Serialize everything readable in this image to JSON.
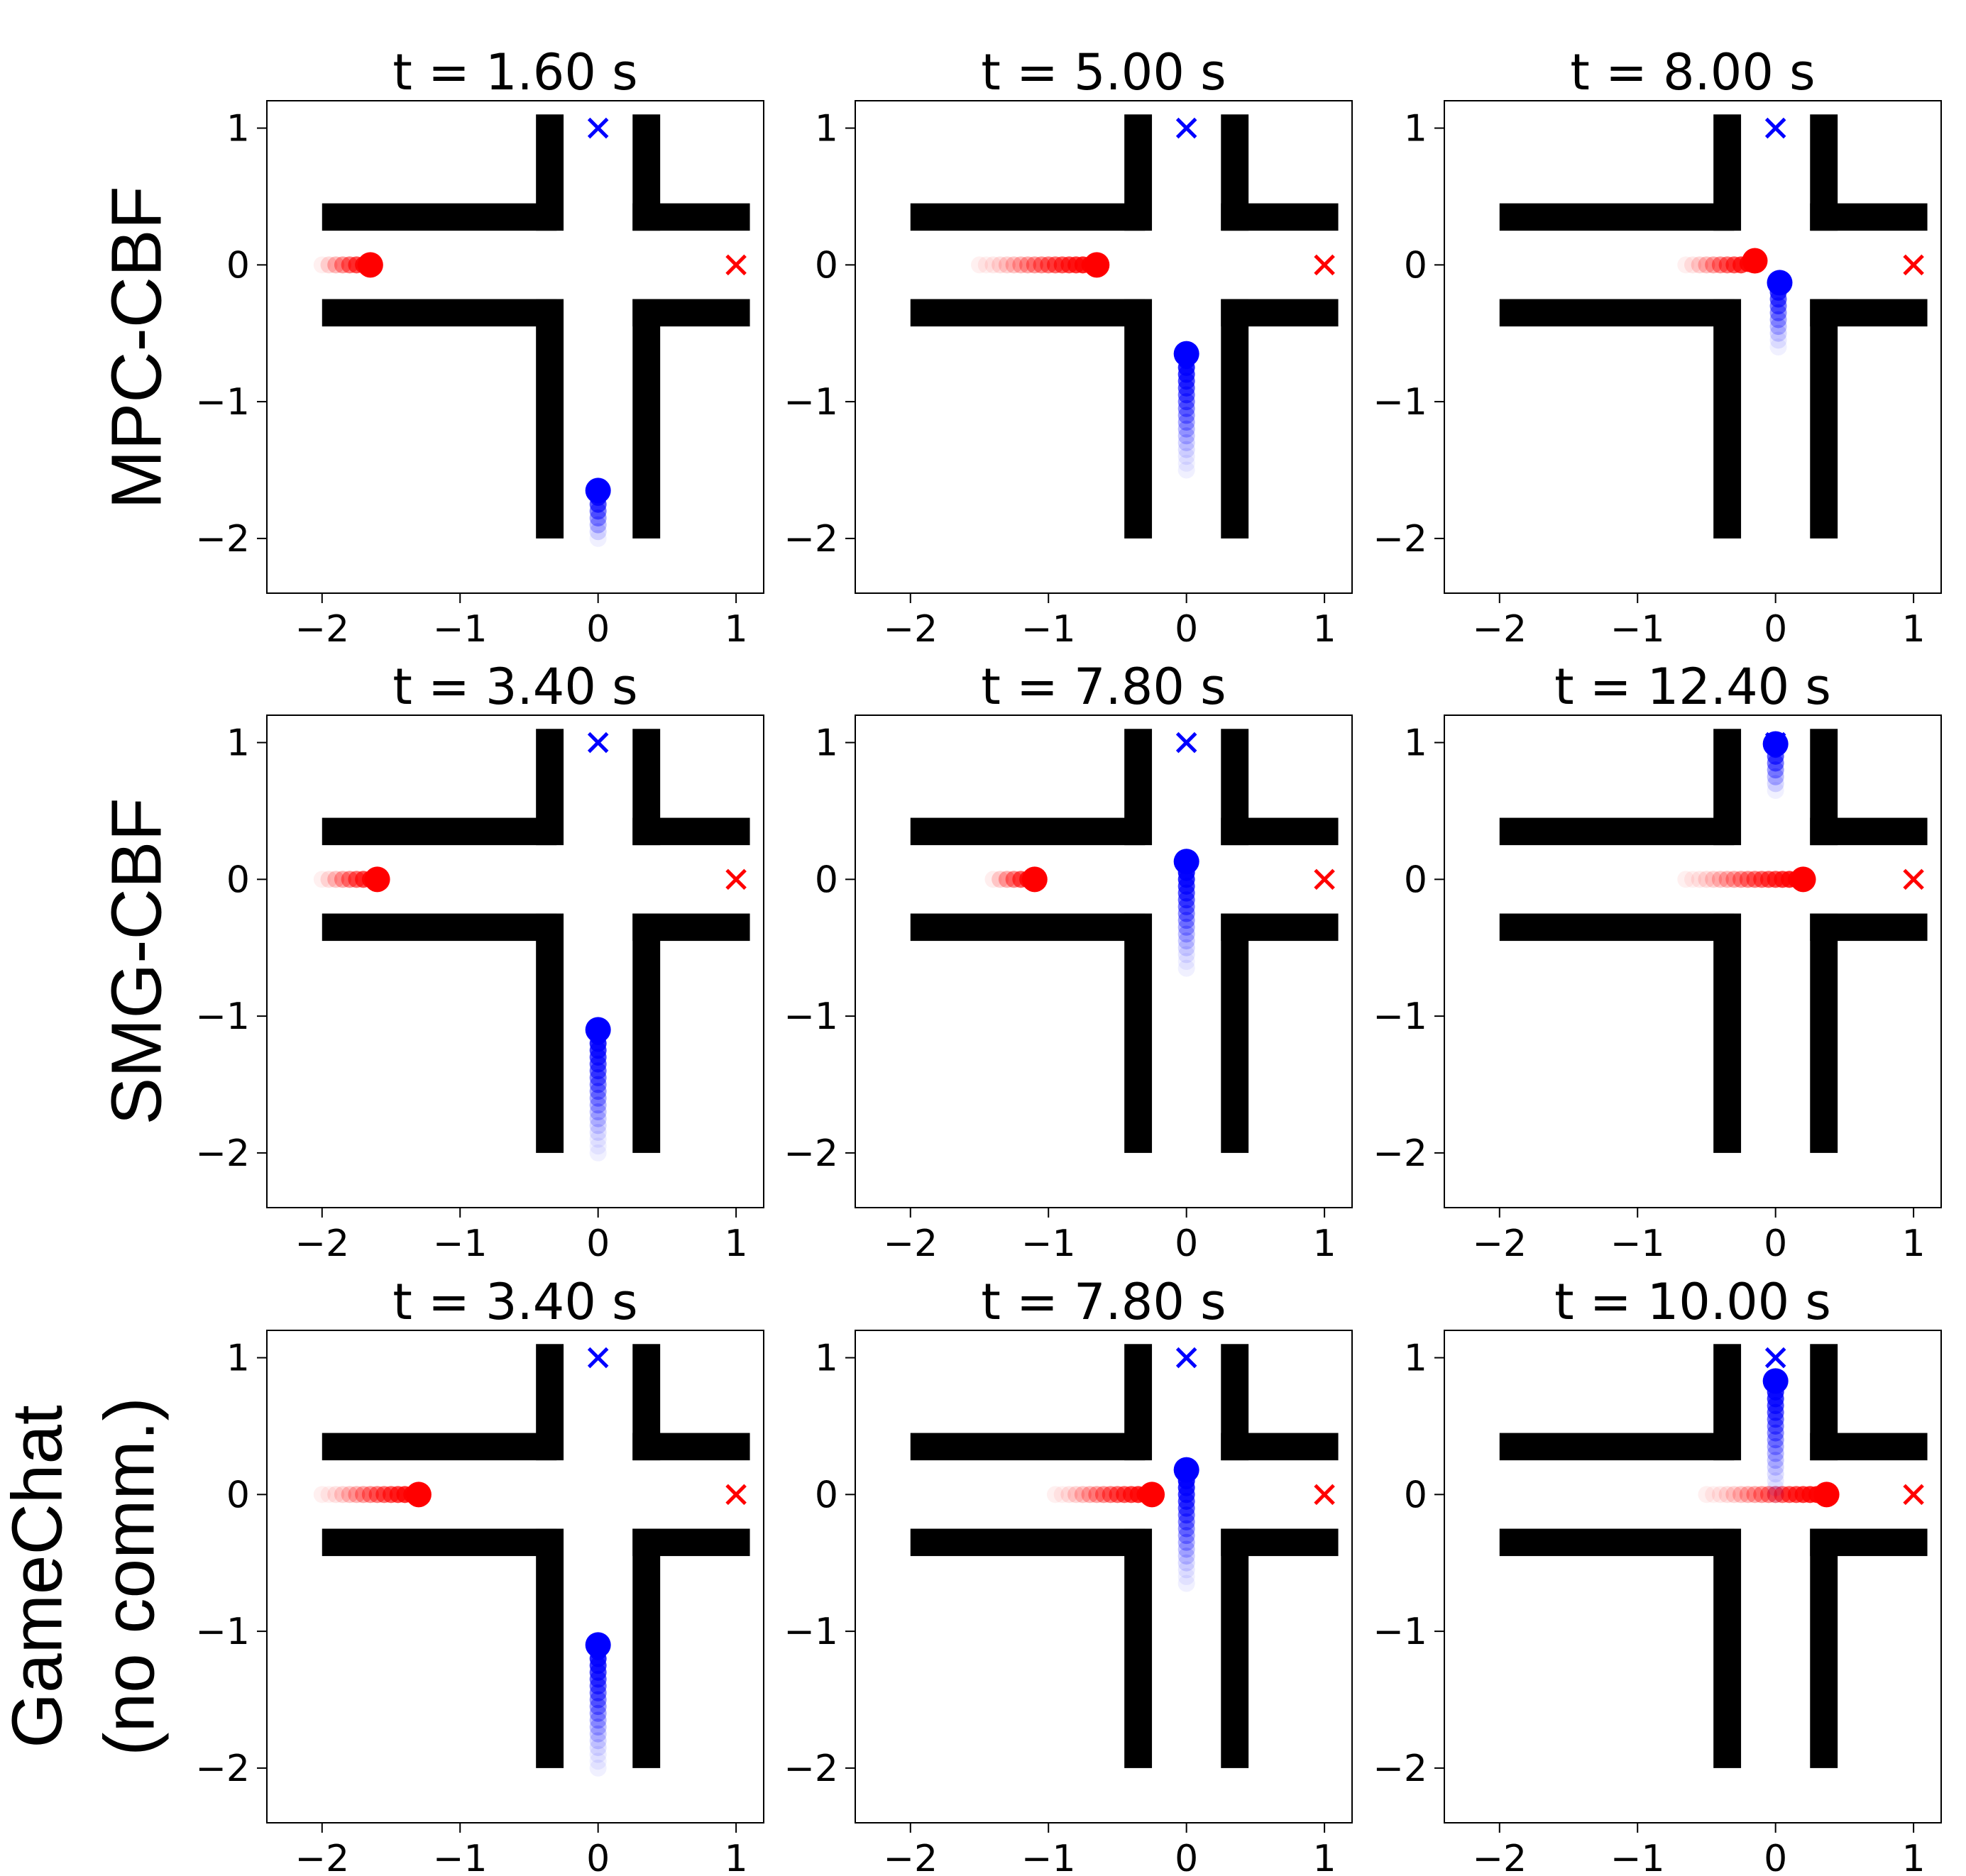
{
  "figure": {
    "row_labels": [
      [
        "MPC-CBF"
      ],
      [
        "SMG-CBF"
      ],
      [
        "GameChat",
        "(no comm.)"
      ]
    ]
  },
  "colors": {
    "red_agent": "#ff0000",
    "blue_agent": "#0000ff",
    "walls": "#000000",
    "axes": "#000000",
    "background": "#ffffff"
  },
  "chart_data": [
    {
      "type": "scatter",
      "title": "t = 1.60 s",
      "xlim": [
        -2.4,
        1.2
      ],
      "ylim": [
        -2.4,
        1.2
      ],
      "xticks": [
        -2,
        -1,
        0,
        1
      ],
      "yticks": [
        1,
        0,
        -1,
        -2
      ],
      "series": [
        {
          "color": "red",
          "x": [
            -2.0,
            -1.95,
            -1.9,
            -1.85,
            -1.8,
            -1.75,
            -1.7,
            -1.65
          ],
          "y": [
            0,
            0,
            0,
            0,
            0,
            0,
            0,
            0
          ]
        },
        {
          "color": "blue",
          "x": [
            0,
            0,
            0,
            0,
            0,
            0,
            0,
            0
          ],
          "y": [
            -2.0,
            -1.95,
            -1.9,
            -1.85,
            -1.8,
            -1.75,
            -1.7,
            -1.65
          ]
        }
      ],
      "goals": [
        {
          "color": "blue",
          "x": 0,
          "y": 1
        },
        {
          "color": "red",
          "x": 1,
          "y": 0
        }
      ]
    },
    {
      "type": "scatter",
      "title": "t = 5.00 s",
      "xlim": [
        -2.4,
        1.2
      ],
      "ylim": [
        -2.4,
        1.2
      ],
      "xticks": [
        -2,
        -1,
        0,
        1
      ],
      "yticks": [
        1,
        0,
        -1,
        -2
      ],
      "series": [
        {
          "color": "red",
          "x": [
            -1.5,
            -1.45,
            -1.4,
            -1.35,
            -1.3,
            -1.25,
            -1.2,
            -1.15,
            -1.1,
            -1.05,
            -1.0,
            -0.95,
            -0.9,
            -0.85,
            -0.8,
            -0.75,
            -0.7,
            -0.65
          ],
          "y": [
            0,
            0,
            0,
            0,
            0,
            0,
            0,
            0,
            0,
            0,
            0,
            0,
            0,
            0,
            0,
            0,
            0,
            0
          ]
        },
        {
          "color": "blue",
          "x": [
            0,
            0,
            0,
            0,
            0,
            0,
            0,
            0,
            0,
            0,
            0,
            0,
            0,
            0,
            0,
            0,
            0,
            0
          ],
          "y": [
            -1.5,
            -1.45,
            -1.4,
            -1.35,
            -1.3,
            -1.25,
            -1.2,
            -1.15,
            -1.1,
            -1.05,
            -1.0,
            -0.95,
            -0.9,
            -0.85,
            -0.8,
            -0.75,
            -0.7,
            -0.65
          ]
        }
      ],
      "goals": [
        {
          "color": "blue",
          "x": 0,
          "y": 1
        },
        {
          "color": "red",
          "x": 1,
          "y": 0
        }
      ]
    },
    {
      "type": "scatter",
      "title": "t = 8.00 s",
      "xlim": [
        -2.4,
        1.2
      ],
      "ylim": [
        -2.4,
        1.2
      ],
      "xticks": [
        -2,
        -1,
        0,
        1
      ],
      "yticks": [
        1,
        0,
        -1,
        -2
      ],
      "series": [
        {
          "color": "red",
          "x": [
            -0.65,
            -0.6,
            -0.55,
            -0.5,
            -0.45,
            -0.4,
            -0.35,
            -0.3,
            -0.25,
            -0.2,
            -0.15
          ],
          "y": [
            0,
            0,
            0,
            0,
            0,
            0,
            0,
            0,
            0,
            0.01,
            0.03
          ]
        },
        {
          "color": "blue",
          "x": [
            0.02,
            0.02,
            0.02,
            0.02,
            0.02,
            0.02,
            0.02,
            0.02,
            0.02,
            0.02,
            0.03
          ],
          "y": [
            -0.6,
            -0.55,
            -0.5,
            -0.45,
            -0.4,
            -0.35,
            -0.3,
            -0.25,
            -0.2,
            -0.16,
            -0.13
          ]
        }
      ],
      "goals": [
        {
          "color": "blue",
          "x": 0,
          "y": 1
        },
        {
          "color": "red",
          "x": 1,
          "y": 0
        }
      ]
    },
    {
      "type": "scatter",
      "title": "t = 3.40 s",
      "xlim": [
        -2.4,
        1.2
      ],
      "ylim": [
        -2.4,
        1.2
      ],
      "xticks": [
        -2,
        -1,
        0,
        1
      ],
      "yticks": [
        1,
        0,
        -1,
        -2
      ],
      "series": [
        {
          "color": "red",
          "x": [
            -2.0,
            -1.95,
            -1.9,
            -1.85,
            -1.8,
            -1.75,
            -1.7,
            -1.65,
            -1.6
          ],
          "y": [
            0,
            0,
            0,
            0,
            0,
            0,
            0,
            0,
            0
          ]
        },
        {
          "color": "blue",
          "x": [
            0,
            0,
            0,
            0,
            0,
            0,
            0,
            0,
            0,
            0,
            0,
            0,
            0,
            0,
            0,
            0,
            0,
            0,
            0
          ],
          "y": [
            -2.0,
            -1.95,
            -1.9,
            -1.85,
            -1.8,
            -1.75,
            -1.7,
            -1.65,
            -1.6,
            -1.55,
            -1.5,
            -1.45,
            -1.4,
            -1.35,
            -1.3,
            -1.25,
            -1.2,
            -1.15,
            -1.1
          ]
        }
      ],
      "goals": [
        {
          "color": "blue",
          "x": 0,
          "y": 1
        },
        {
          "color": "red",
          "x": 1,
          "y": 0
        }
      ]
    },
    {
      "type": "scatter",
      "title": "t = 7.80 s",
      "xlim": [
        -2.4,
        1.2
      ],
      "ylim": [
        -2.4,
        1.2
      ],
      "xticks": [
        -2,
        -1,
        0,
        1
      ],
      "yticks": [
        1,
        0,
        -1,
        -2
      ],
      "series": [
        {
          "color": "red",
          "x": [
            -1.4,
            -1.35,
            -1.3,
            -1.25,
            -1.2,
            -1.15,
            -1.1
          ],
          "y": [
            0,
            0,
            0,
            0,
            0,
            0,
            0
          ]
        },
        {
          "color": "blue",
          "x": [
            0,
            0,
            0,
            0,
            0,
            0,
            0,
            0,
            0,
            0,
            0,
            0,
            0,
            0,
            0,
            0
          ],
          "y": [
            -0.65,
            -0.6,
            -0.55,
            -0.5,
            -0.45,
            -0.4,
            -0.35,
            -0.3,
            -0.25,
            -0.2,
            -0.15,
            -0.1,
            -0.05,
            0.0,
            0.05,
            0.13
          ]
        }
      ],
      "goals": [
        {
          "color": "blue",
          "x": 0,
          "y": 1
        },
        {
          "color": "red",
          "x": 1,
          "y": 0
        }
      ]
    },
    {
      "type": "scatter",
      "title": "t = 12.40 s",
      "xlim": [
        -2.4,
        1.2
      ],
      "ylim": [
        -2.4,
        1.2
      ],
      "xticks": [
        -2,
        -1,
        0,
        1
      ],
      "yticks": [
        1,
        0,
        -1,
        -2
      ],
      "series": [
        {
          "color": "red",
          "x": [
            -0.65,
            -0.6,
            -0.55,
            -0.5,
            -0.45,
            -0.4,
            -0.35,
            -0.3,
            -0.25,
            -0.2,
            -0.15,
            -0.1,
            -0.05,
            0.0,
            0.05,
            0.1,
            0.15,
            0.2
          ],
          "y": [
            0,
            0,
            0,
            0,
            0,
            0,
            0,
            0,
            0,
            0,
            0,
            0,
            0,
            0,
            0,
            0,
            0,
            0
          ]
        },
        {
          "color": "blue",
          "x": [
            0,
            0,
            0,
            0,
            0,
            0,
            0,
            0
          ],
          "y": [
            0.65,
            0.7,
            0.75,
            0.8,
            0.85,
            0.9,
            0.95,
            0.99
          ]
        }
      ],
      "goals": [
        {
          "color": "blue",
          "x": 0,
          "y": 1
        },
        {
          "color": "red",
          "x": 1,
          "y": 0
        }
      ]
    },
    {
      "type": "scatter",
      "title": "t = 3.40 s",
      "xlim": [
        -2.4,
        1.2
      ],
      "ylim": [
        -2.4,
        1.2
      ],
      "xticks": [
        -2,
        -1,
        0,
        1
      ],
      "yticks": [
        1,
        0,
        -1,
        -2
      ],
      "series": [
        {
          "color": "red",
          "x": [
            -2.0,
            -1.95,
            -1.9,
            -1.85,
            -1.8,
            -1.75,
            -1.7,
            -1.65,
            -1.6,
            -1.55,
            -1.5,
            -1.45,
            -1.4,
            -1.35,
            -1.3
          ],
          "y": [
            0,
            0,
            0,
            0,
            0,
            0,
            0,
            0,
            0,
            0,
            0,
            0,
            0,
            0,
            0
          ]
        },
        {
          "color": "blue",
          "x": [
            0,
            0,
            0,
            0,
            0,
            0,
            0,
            0,
            0,
            0,
            0,
            0,
            0,
            0,
            0,
            0,
            0,
            0,
            0
          ],
          "y": [
            -2.0,
            -1.95,
            -1.9,
            -1.85,
            -1.8,
            -1.75,
            -1.7,
            -1.65,
            -1.6,
            -1.55,
            -1.5,
            -1.45,
            -1.4,
            -1.35,
            -1.3,
            -1.25,
            -1.2,
            -1.15,
            -1.1
          ]
        }
      ],
      "goals": [
        {
          "color": "blue",
          "x": 0,
          "y": 1
        },
        {
          "color": "red",
          "x": 1,
          "y": 0
        }
      ]
    },
    {
      "type": "scatter",
      "title": "t = 7.80 s",
      "xlim": [
        -2.4,
        1.2
      ],
      "ylim": [
        -2.4,
        1.2
      ],
      "xticks": [
        -2,
        -1,
        0,
        1
      ],
      "yticks": [
        1,
        0,
        -1,
        -2
      ],
      "series": [
        {
          "color": "red",
          "x": [
            -0.95,
            -0.9,
            -0.85,
            -0.8,
            -0.75,
            -0.7,
            -0.65,
            -0.6,
            -0.55,
            -0.5,
            -0.45,
            -0.4,
            -0.35,
            -0.3,
            -0.25
          ],
          "y": [
            0,
            0,
            0,
            0,
            0,
            0,
            0,
            0,
            0,
            0,
            0,
            0,
            0,
            0,
            0
          ]
        },
        {
          "color": "blue",
          "x": [
            0,
            0,
            0,
            0,
            0,
            0,
            0,
            0,
            0,
            0,
            0,
            0,
            0,
            0,
            0,
            0,
            0
          ],
          "y": [
            -0.65,
            -0.6,
            -0.55,
            -0.5,
            -0.45,
            -0.4,
            -0.35,
            -0.3,
            -0.25,
            -0.2,
            -0.15,
            -0.1,
            -0.05,
            0.0,
            0.05,
            0.1,
            0.18
          ]
        }
      ],
      "goals": [
        {
          "color": "blue",
          "x": 0,
          "y": 1
        },
        {
          "color": "red",
          "x": 1,
          "y": 0
        }
      ]
    },
    {
      "type": "scatter",
      "title": "t = 10.00 s",
      "xlim": [
        -2.4,
        1.2
      ],
      "ylim": [
        -2.4,
        1.2
      ],
      "xticks": [
        -2,
        -1,
        0,
        1
      ],
      "yticks": [
        1,
        0,
        -1,
        -2
      ],
      "series": [
        {
          "color": "red",
          "x": [
            -0.5,
            -0.45,
            -0.4,
            -0.35,
            -0.3,
            -0.25,
            -0.2,
            -0.15,
            -0.1,
            -0.05,
            0.0,
            0.05,
            0.1,
            0.15,
            0.2,
            0.25,
            0.3,
            0.37
          ],
          "y": [
            0,
            0,
            0,
            0,
            0,
            0,
            0,
            0,
            0,
            0,
            0,
            0,
            0,
            0,
            0,
            0,
            0,
            0
          ]
        },
        {
          "color": "blue",
          "x": [
            0,
            0,
            0,
            0,
            0,
            0,
            0,
            0,
            0,
            0,
            0,
            0,
            0,
            0,
            0,
            0,
            0,
            0
          ],
          "y": [
            0.0,
            0.05,
            0.1,
            0.15,
            0.2,
            0.25,
            0.3,
            0.35,
            0.4,
            0.45,
            0.5,
            0.55,
            0.6,
            0.65,
            0.7,
            0.75,
            0.8,
            0.83
          ]
        }
      ],
      "goals": [
        {
          "color": "blue",
          "x": 0,
          "y": 1
        },
        {
          "color": "red",
          "x": 1,
          "y": 0
        }
      ]
    }
  ]
}
